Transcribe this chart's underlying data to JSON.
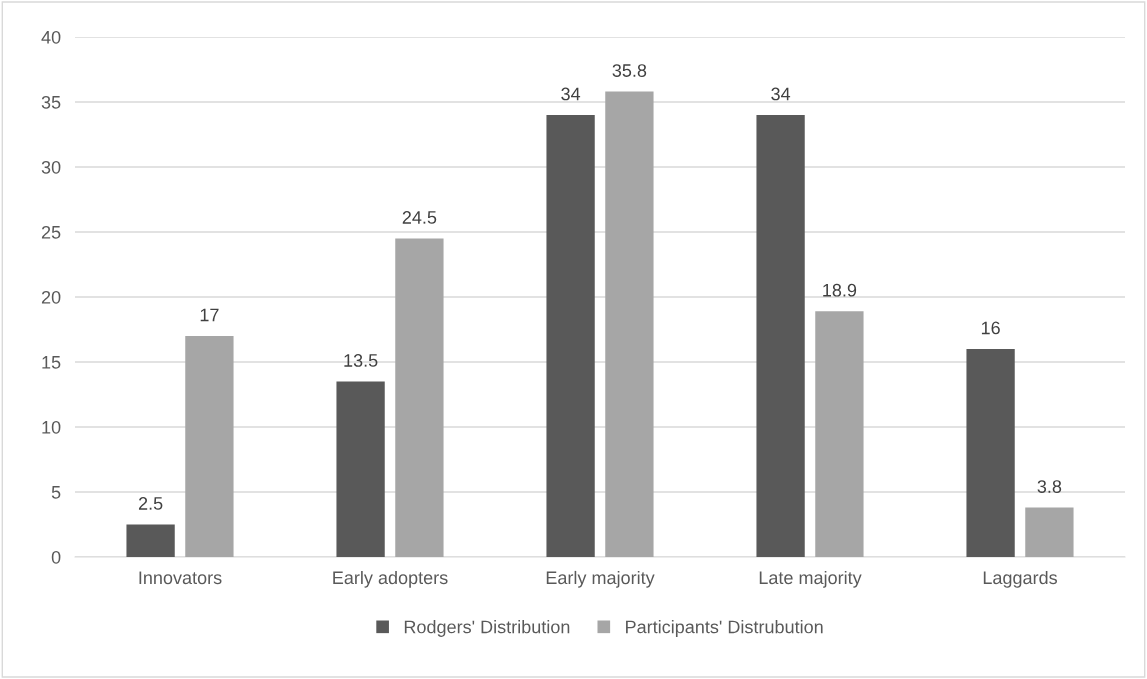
{
  "chart_data": {
    "type": "bar",
    "categories": [
      "Innovators",
      "Early adopters",
      "Early majority",
      "Late majority",
      "Laggards"
    ],
    "series": [
      {
        "name": "Rodgers' Distribution",
        "color": "#595959",
        "values": [
          2.5,
          13.5,
          34,
          34,
          16
        ]
      },
      {
        "name": "Participants' Distrubution",
        "color": "#a6a6a6",
        "values": [
          17,
          24.5,
          35.8,
          18.9,
          3.8
        ]
      }
    ],
    "ylim": [
      0,
      40
    ],
    "yticks": [
      0,
      5,
      10,
      15,
      20,
      25,
      30,
      35,
      40
    ],
    "grid": "y",
    "legend": "bottom",
    "data_labels": true
  }
}
